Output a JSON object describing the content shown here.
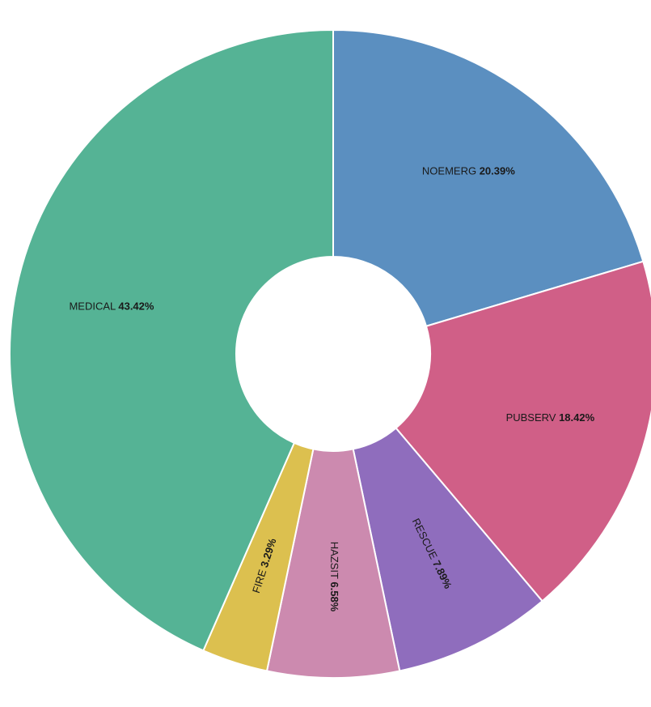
{
  "chart_data": {
    "type": "pie",
    "style": "donut",
    "slices": [
      {
        "label": "NOEMERG",
        "value": 20.39,
        "display": "20.39%",
        "color": "#5b8fc0"
      },
      {
        "label": "PUBSERV",
        "value": 18.42,
        "display": "18.42%",
        "color": "#d05f87"
      },
      {
        "label": "RESCUE",
        "value": 7.89,
        "display": "7.89%",
        "color": "#8f6dbd"
      },
      {
        "label": "HAZSIT",
        "value": 6.58,
        "display": "6.58%",
        "color": "#cc8aaf"
      },
      {
        "label": "FIRE",
        "value": 3.29,
        "display": "3.29%",
        "color": "#dcc04f"
      },
      {
        "label": "MEDICAL",
        "value": 43.42,
        "display": "43.42%",
        "color": "#55b395"
      }
    ]
  }
}
